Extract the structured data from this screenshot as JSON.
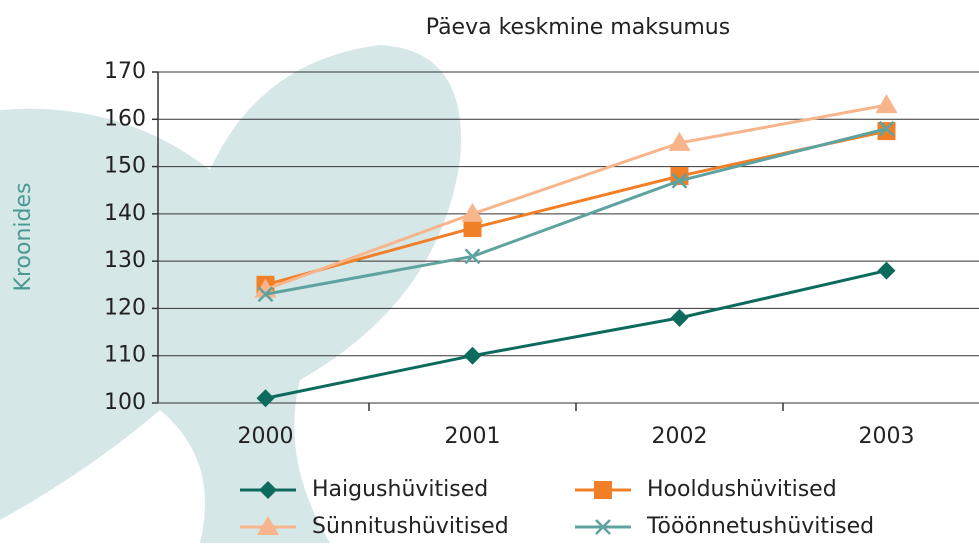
{
  "chart_data": {
    "type": "line",
    "title": "Päeva keskmine maksumus",
    "y_label": "Kroonides",
    "categories": [
      "2000",
      "2001",
      "2002",
      "2003"
    ],
    "series": [
      {
        "name": "Haigushüvitised",
        "color": "#0d6b5e",
        "marker": "diamond",
        "values": [
          101,
          110,
          118,
          128
        ]
      },
      {
        "name": "Hooldushüvitised",
        "color": "#f07f27",
        "marker": "square",
        "values": [
          125,
          137,
          148,
          157.5
        ]
      },
      {
        "name": "Sünnitushüvitised",
        "color": "#f8b48a",
        "marker": "triangle",
        "values": [
          124,
          140,
          155,
          163
        ]
      },
      {
        "name": "Tööönnetushüvitised",
        "color": "#5fa3a0",
        "marker": "x",
        "values": [
          123,
          131,
          147,
          158
        ]
      }
    ],
    "ylim": [
      100,
      170
    ],
    "yticks": [
      100,
      110,
      120,
      130,
      140,
      150,
      160,
      170
    ],
    "grid": true
  }
}
